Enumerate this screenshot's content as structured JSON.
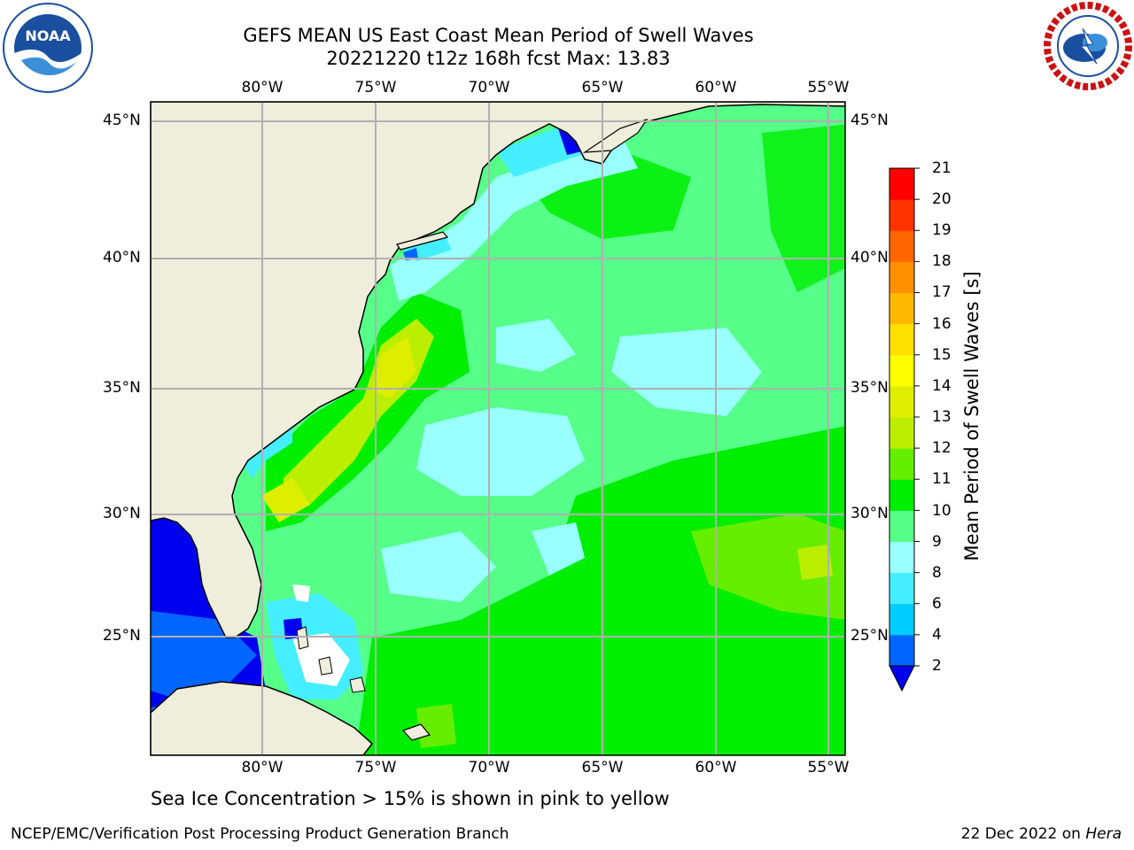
{
  "title": {
    "line1": "GEFS MEAN US East Coast Mean Period of Swell Waves",
    "line2": "20221220 t12z 168h fcst   Max: 13.83"
  },
  "map": {
    "lon_labels": [
      "80°W",
      "75°W",
      "70°W",
      "65°W",
      "60°W",
      "55°W"
    ],
    "lat_labels": [
      "45°N",
      "40°N",
      "35°N",
      "30°N",
      "25°N"
    ],
    "lon_values": [
      -80,
      -75,
      -70,
      -65,
      -60,
      -55
    ],
    "lat_values": [
      45,
      40,
      35,
      30,
      25
    ],
    "extent": {
      "lon_min": -85,
      "lon_max": -54.3,
      "lat_min": 20.5,
      "lat_max": 45.8
    },
    "colors": {
      "land": "#efeddb",
      "grid": "#b0b0b0",
      "coast": "#000000"
    }
  },
  "colorbar": {
    "label": "Mean Period of Swell Waves [s]",
    "ticks": [
      "21",
      "20",
      "19",
      "18",
      "17",
      "16",
      "15",
      "14",
      "13",
      "12",
      "11",
      "10",
      "9",
      "8",
      "6",
      "4",
      "2"
    ],
    "bands": [
      {
        "from": 2,
        "to": 4,
        "color": "#0066ff"
      },
      {
        "from": 4,
        "to": 6,
        "color": "#00ccff"
      },
      {
        "from": 6,
        "to": 8,
        "color": "#44eeff"
      },
      {
        "from": 8,
        "to": 9,
        "color": "#99ffff"
      },
      {
        "from": 9,
        "to": 10,
        "color": "#55ff88"
      },
      {
        "from": 10,
        "to": 11,
        "color": "#00ee00"
      },
      {
        "from": 11,
        "to": 12,
        "color": "#66ee00"
      },
      {
        "from": 12,
        "to": 13,
        "color": "#bbee00"
      },
      {
        "from": 13,
        "to": 14,
        "color": "#ddee00"
      },
      {
        "from": 14,
        "to": 15,
        "color": "#ffff00"
      },
      {
        "from": 15,
        "to": 16,
        "color": "#ffe000"
      },
      {
        "from": 16,
        "to": 17,
        "color": "#ffb800"
      },
      {
        "from": 17,
        "to": 18,
        "color": "#ff9000"
      },
      {
        "from": 18,
        "to": 19,
        "color": "#ff6600"
      },
      {
        "from": 19,
        "to": 20,
        "color": "#ff3300"
      },
      {
        "from": 20,
        "to": 21,
        "color": "#ff0000"
      }
    ],
    "under_color": "#0000ee"
  },
  "note": "Sea Ice Concentration > 15% is shown in pink to yellow",
  "footer": {
    "left": "NCEP/EMC/Verification Post Processing Product Generation Branch",
    "date": "22 Dec 2022 on",
    "host": "Hera"
  },
  "logos": {
    "left": {
      "text": "NOAA",
      "color": "#1a4fa0"
    },
    "right": {
      "color": "#cc1111"
    }
  }
}
